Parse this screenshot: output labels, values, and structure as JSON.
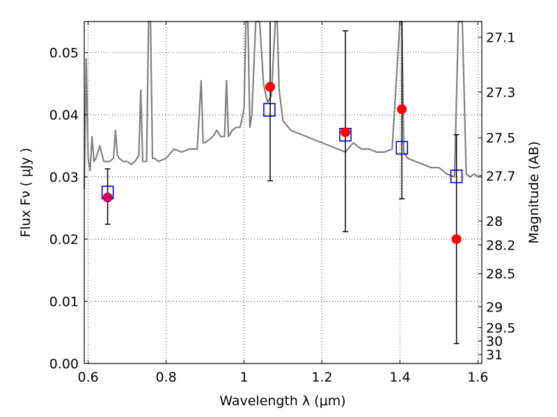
{
  "chart_data": {
    "type": "scatter",
    "xlabel": "Wavelength  λ (μm)",
    "ylabel": "Flux  Fν  ( μJy )",
    "y2label": "Magnitude (AB)",
    "xlim": [
      0.59,
      1.61
    ],
    "ylim": [
      0.0,
      0.055
    ],
    "grid": true,
    "x_ticks": [
      0.6,
      0.8,
      1.0,
      1.2,
      1.4,
      1.6
    ],
    "x_tick_labels": [
      "0.6",
      "0.8",
      "1",
      "1.2",
      "1.4",
      "1.6"
    ],
    "y_ticks": [
      0.0,
      0.01,
      0.02,
      0.03,
      0.04,
      0.05
    ],
    "y_tick_labels": [
      "0.00",
      "0.01",
      "0.02",
      "0.03",
      "0.04",
      "0.05"
    ],
    "y2_ticks": [
      {
        "mag": 27.1,
        "label": "27.1"
      },
      {
        "mag": 27.3,
        "label": "27.3"
      },
      {
        "mag": 27.5,
        "label": "27.5"
      },
      {
        "mag": 27.7,
        "label": "27.7"
      },
      {
        "mag": 28.0,
        "label": "28"
      },
      {
        "mag": 28.2,
        "label": "28.2"
      },
      {
        "mag": 28.5,
        "label": "28.5"
      },
      {
        "mag": 29.0,
        "label": "29"
      },
      {
        "mag": 29.5,
        "label": "29.5"
      },
      {
        "mag": 30.0,
        "label": "30"
      },
      {
        "mag": 31.0,
        "label": "31"
      }
    ],
    "series": [
      {
        "kind": "line",
        "color": "#808080",
        "x": [
          0.59,
          0.595,
          0.6,
          0.605,
          0.61,
          0.615,
          0.62,
          0.63,
          0.64,
          0.655,
          0.665,
          0.67,
          0.675,
          0.68,
          0.69,
          0.7,
          0.71,
          0.72,
          0.73,
          0.735,
          0.74,
          0.745,
          0.75,
          0.755,
          0.76,
          0.765,
          0.77,
          0.78,
          0.8,
          0.82,
          0.84,
          0.86,
          0.88,
          0.89,
          0.895,
          0.9,
          0.91,
          0.92,
          0.93,
          0.94,
          0.95,
          0.955,
          0.96,
          0.97,
          0.98,
          0.99,
          1.0,
          1.005,
          1.01,
          1.015,
          1.02,
          1.03,
          1.04,
          1.05,
          1.06,
          1.07,
          1.08,
          1.085,
          1.09,
          1.1,
          1.12,
          1.14,
          1.16,
          1.18,
          1.2,
          1.22,
          1.24,
          1.26,
          1.28,
          1.3,
          1.32,
          1.34,
          1.36,
          1.38,
          1.4,
          1.405,
          1.41,
          1.42,
          1.44,
          1.46,
          1.48,
          1.5,
          1.52,
          1.54,
          1.55,
          1.56,
          1.57,
          1.58,
          1.59,
          1.6,
          1.61
        ],
        "y": [
          0.028,
          0.049,
          0.033,
          0.031,
          0.0365,
          0.0325,
          0.033,
          0.035,
          0.0325,
          0.0325,
          0.033,
          0.0375,
          0.0335,
          0.033,
          0.0325,
          0.0325,
          0.032,
          0.0325,
          0.0335,
          0.044,
          0.0325,
          0.0325,
          0.0325,
          0.055,
          0.055,
          0.033,
          0.033,
          0.0325,
          0.033,
          0.0345,
          0.034,
          0.0345,
          0.0345,
          0.0455,
          0.0355,
          0.0355,
          0.036,
          0.0365,
          0.0375,
          0.0365,
          0.0365,
          0.0455,
          0.0365,
          0.0375,
          0.038,
          0.038,
          0.041,
          0.055,
          0.055,
          0.038,
          0.04,
          0.055,
          0.055,
          0.045,
          0.042,
          0.043,
          0.055,
          0.055,
          0.044,
          0.039,
          0.0375,
          0.037,
          0.0365,
          0.036,
          0.0355,
          0.035,
          0.0345,
          0.034,
          0.0355,
          0.0345,
          0.0345,
          0.034,
          0.034,
          0.0345,
          0.055,
          0.055,
          0.034,
          0.033,
          0.0325,
          0.032,
          0.0315,
          0.0315,
          0.0305,
          0.03,
          0.055,
          0.055,
          0.0305,
          0.03,
          0.0305,
          0.03,
          0.03
        ]
      },
      {
        "kind": "squares",
        "color": "#0000cc",
        "x": [
          0.65,
          1.065,
          1.26,
          1.405,
          1.545
        ],
        "y": [
          0.0275,
          0.0408,
          0.0368,
          0.0347,
          0.0301
        ]
      },
      {
        "kind": "points_with_errorbars",
        "color": "#ff0000",
        "x": [
          0.65,
          1.067,
          1.26,
          1.405,
          1.545
        ],
        "y": [
          0.0267,
          0.0445,
          0.0372,
          0.0409,
          0.02
        ],
        "yerr_low": [
          0.0224,
          0.0294,
          0.0212,
          0.0265,
          0.0032
        ],
        "yerr_high": [
          0.0313,
          0.055,
          0.0535,
          0.055,
          0.0368
        ]
      }
    ]
  }
}
